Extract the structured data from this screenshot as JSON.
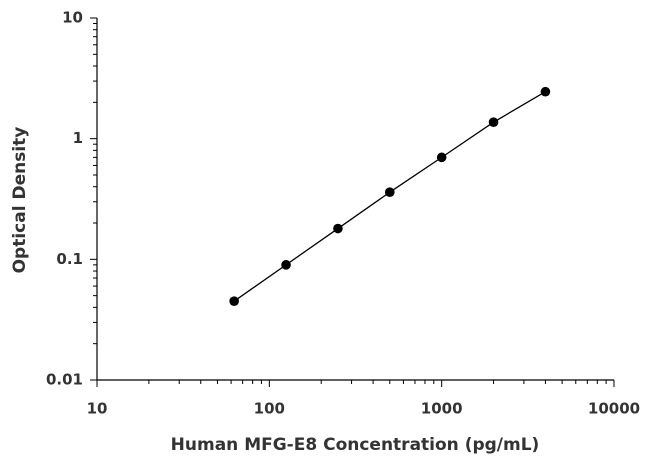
{
  "chart_data": {
    "type": "scatter",
    "x_label": "Human MFG-E8 Concentration (pg/mL)",
    "y_label": "Optical Density",
    "x": [
      62.5,
      125,
      250,
      500,
      1000,
      2000,
      4000
    ],
    "series": [
      {
        "color": "#000000",
        "values": [
          0.045,
          0.09,
          0.18,
          0.36,
          0.7,
          1.37,
          2.45
        ]
      }
    ],
    "connect": true,
    "xlog": true,
    "ylog": true,
    "minor_ticks": true,
    "xlim": [
      10,
      10000
    ],
    "ylim": [
      0.01,
      10
    ],
    "xticks": [
      10,
      100,
      1000,
      10000
    ],
    "yticks": [
      0.01,
      0.1,
      1,
      10
    ]
  }
}
